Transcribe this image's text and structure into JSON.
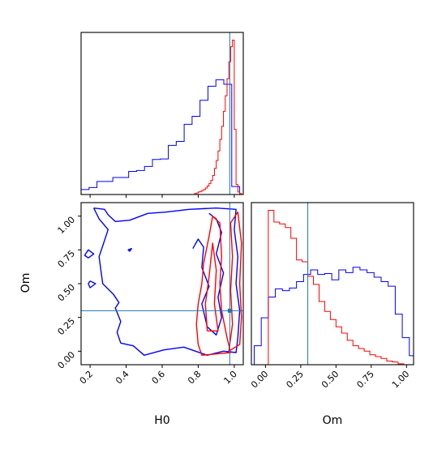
{
  "chart_data": [
    {
      "panel": "H0 marginal",
      "type": "histogram",
      "xlim": [
        0.15,
        1.05
      ],
      "truth": 0.975,
      "series": [
        {
          "color": "#0000ff",
          "bin_edges": [
            0.15,
            0.194,
            0.238,
            0.282,
            0.326,
            0.37,
            0.414,
            0.458,
            0.502,
            0.546,
            0.59,
            0.634,
            0.678,
            0.722,
            0.766,
            0.81,
            0.854,
            0.898,
            0.942,
            0.986,
            1.03
          ],
          "values": [
            1.0,
            1.4,
            2.6,
            2.6,
            3.4,
            3.4,
            4.6,
            4.8,
            5.6,
            7.0,
            7.1,
            9.8,
            10.6,
            14.0,
            15.6,
            18.8,
            21.6,
            22.9,
            22.0,
            1.6
          ]
        },
        {
          "color": "#ff0000",
          "bin_edges": [
            0.77,
            0.78,
            0.79,
            0.8,
            0.81,
            0.82,
            0.83,
            0.84,
            0.85,
            0.86,
            0.87,
            0.88,
            0.89,
            0.9,
            0.91,
            0.92,
            0.93,
            0.94,
            0.95,
            0.96,
            0.97,
            0.98,
            0.99,
            1.0,
            1.01,
            1.02,
            1.03,
            1.04,
            1.05
          ],
          "values": [
            0,
            0.2,
            0.3,
            0.5,
            0.6,
            0.8,
            1.0,
            1.3,
            1.7,
            2.2,
            2.8,
            3.8,
            5.2,
            6.8,
            8.7,
            11.0,
            13.6,
            16.6,
            19.7,
            23.1,
            26.5,
            29.5,
            30.8,
            13,
            2,
            0.5,
            0.2,
            0
          ]
        }
      ]
    },
    {
      "panel": "H0 vs Om",
      "type": "contour",
      "xlabel": "H0",
      "ylabel": "Om",
      "xlim": [
        0.15,
        1.05
      ],
      "ylim": [
        -0.1,
        1.1
      ],
      "x_ticks": [
        0.2,
        0.4,
        0.6,
        0.8,
        1.0
      ],
      "x_ticklabels": [
        "0.2",
        "0.4",
        "0.6",
        "0.8",
        "1.0"
      ],
      "y_ticks": [
        0.0,
        0.25,
        0.5,
        0.75,
        1.0
      ],
      "y_ticklabels": [
        "0.00",
        "0.25",
        "0.50",
        "0.75",
        "1.00"
      ],
      "truth": {
        "H0": 0.975,
        "Om": 0.3
      },
      "contours": [
        {
          "color": "#0000ff",
          "points": [
            [
              0.22,
              1.06
            ],
            [
              0.28,
              1.05
            ],
            [
              0.3,
              1.01
            ],
            [
              0.34,
              0.96
            ],
            [
              0.42,
              0.97
            ],
            [
              0.52,
              1.02
            ],
            [
              0.62,
              1.03
            ],
            [
              0.75,
              1.05
            ],
            [
              0.9,
              1.06
            ],
            [
              1.01,
              1.05
            ],
            [
              1.0,
              0.9
            ],
            [
              1.02,
              0.7
            ],
            [
              1.01,
              0.5
            ],
            [
              1.03,
              0.3
            ],
            [
              1.02,
              0.1
            ],
            [
              1.01,
              -0.01
            ],
            [
              0.94,
              0.0
            ],
            [
              0.85,
              -0.03
            ],
            [
              0.72,
              0.03
            ],
            [
              0.61,
              0.01
            ],
            [
              0.5,
              -0.03
            ],
            [
              0.44,
              0.04
            ],
            [
              0.37,
              0.06
            ],
            [
              0.35,
              0.14
            ],
            [
              0.37,
              0.22
            ],
            [
              0.34,
              0.32
            ],
            [
              0.36,
              0.36
            ],
            [
              0.33,
              0.42
            ],
            [
              0.27,
              0.5
            ],
            [
              0.26,
              0.6
            ],
            [
              0.25,
              0.7
            ],
            [
              0.28,
              0.82
            ],
            [
              0.3,
              0.9
            ],
            [
              0.25,
              0.98
            ],
            [
              0.22,
              1.06
            ]
          ]
        },
        {
          "color": "#0000ff",
          "points": [
            [
              0.77,
              0.76
            ],
            [
              0.8,
              0.83
            ],
            [
              0.83,
              0.77
            ],
            [
              0.82,
              0.62
            ],
            [
              0.86,
              0.48
            ],
            [
              0.82,
              0.35
            ],
            [
              0.85,
              0.18
            ],
            [
              0.9,
              0.12
            ],
            [
              0.93,
              0.25
            ],
            [
              0.91,
              0.4
            ],
            [
              0.94,
              0.58
            ],
            [
              0.9,
              0.72
            ],
            [
              0.93,
              0.88
            ],
            [
              0.9,
              0.98
            ],
            [
              0.86,
              1.02
            ]
          ]
        },
        {
          "color": "#0000ff",
          "points": [
            [
              0.2,
              0.52
            ],
            [
              0.23,
              0.5
            ],
            [
              0.2,
              0.47
            ],
            [
              0.19,
              0.5
            ],
            [
              0.2,
              0.52
            ]
          ]
        },
        {
          "color": "#0000ff",
          "points": [
            [
              0.19,
              0.69
            ],
            [
              0.22,
              0.72
            ],
            [
              0.19,
              0.75
            ],
            [
              0.17,
              0.71
            ],
            [
              0.19,
              0.69
            ]
          ]
        },
        {
          "color": "#0000ff",
          "points": [
            [
              0.41,
              0.75
            ],
            [
              0.43,
              0.76
            ],
            [
              0.42,
              0.74
            ],
            [
              0.41,
              0.75
            ]
          ]
        },
        {
          "color": "#ff0000",
          "points": [
            [
              0.8,
              0.05
            ],
            [
              0.79,
              0.2
            ],
            [
              0.8,
              0.35
            ],
            [
              0.82,
              0.5
            ],
            [
              0.83,
              0.65
            ],
            [
              0.86,
              0.85
            ],
            [
              0.88,
              1.0
            ],
            [
              0.92,
              0.95
            ],
            [
              0.93,
              0.7
            ],
            [
              0.92,
              0.5
            ],
            [
              0.93,
              0.3
            ],
            [
              0.96,
              0.1
            ],
            [
              0.98,
              -0.01
            ],
            [
              0.9,
              -0.02
            ],
            [
              0.82,
              -0.03
            ],
            [
              0.8,
              0.05
            ]
          ]
        },
        {
          "color": "#ff0000",
          "points": [
            [
              0.97,
              0.0
            ],
            [
              0.99,
              0.2
            ],
            [
              0.98,
              0.45
            ],
            [
              0.99,
              0.7
            ],
            [
              0.98,
              0.95
            ],
            [
              1.02,
              1.03
            ],
            [
              1.04,
              0.8
            ],
            [
              1.03,
              0.5
            ],
            [
              1.04,
              0.25
            ],
            [
              1.03,
              0.05
            ],
            [
              0.97,
              0.0
            ]
          ]
        },
        {
          "color": "#ff0000",
          "points": [
            [
              0.85,
              0.15
            ],
            [
              0.84,
              0.35
            ],
            [
              0.86,
              0.55
            ],
            [
              0.88,
              0.8
            ],
            [
              0.9,
              0.6
            ],
            [
              0.89,
              0.35
            ],
            [
              0.91,
              0.15
            ],
            [
              0.85,
              0.15
            ]
          ]
        }
      ]
    },
    {
      "panel": "Om marginal",
      "type": "histogram",
      "xlabel": "Om",
      "xlim": [
        -0.1,
        1.05
      ],
      "x_ticks": [
        0.0,
        0.25,
        0.5,
        0.75,
        1.0
      ],
      "x_ticklabels": [
        "0.00",
        "0.25",
        "0.50",
        "0.75",
        "1.00"
      ],
      "truth": 0.3,
      "series": [
        {
          "color": "#0000ff",
          "bin_edges": [
            -0.08,
            -0.03,
            0.02,
            0.07,
            0.12,
            0.17,
            0.22,
            0.27,
            0.32,
            0.37,
            0.42,
            0.47,
            0.52,
            0.57,
            0.62,
            0.67,
            0.72,
            0.77,
            0.82,
            0.87,
            0.92,
            0.97,
            1.02,
            1.07
          ],
          "values": [
            2.1,
            5.2,
            7.5,
            8.4,
            8.2,
            8.5,
            9.2,
            10.0,
            10.5,
            10.0,
            10.1,
            9.4,
            10.5,
            10.2,
            10.8,
            10.5,
            10.2,
            9.7,
            9.2,
            8.7,
            5.6,
            3.0,
            1.0
          ]
        },
        {
          "color": "#ff0000",
          "bin_edges": [
            0.02,
            0.06,
            0.1,
            0.14,
            0.18,
            0.22,
            0.26,
            0.3,
            0.34,
            0.38,
            0.42,
            0.46,
            0.5,
            0.54,
            0.58,
            0.62,
            0.66,
            0.7,
            0.74,
            0.78,
            0.82,
            0.86,
            0.9,
            0.94,
            0.98
          ],
          "values": [
            17.1,
            15.8,
            15.6,
            15.2,
            14.0,
            11.6,
            11.4,
            9.8,
            8.9,
            7.0,
            5.9,
            5.0,
            4.2,
            3.5,
            2.7,
            2.1,
            1.8,
            1.5,
            1.1,
            0.9,
            0.7,
            0.4,
            0.3,
            0.1
          ]
        }
      ]
    }
  ]
}
